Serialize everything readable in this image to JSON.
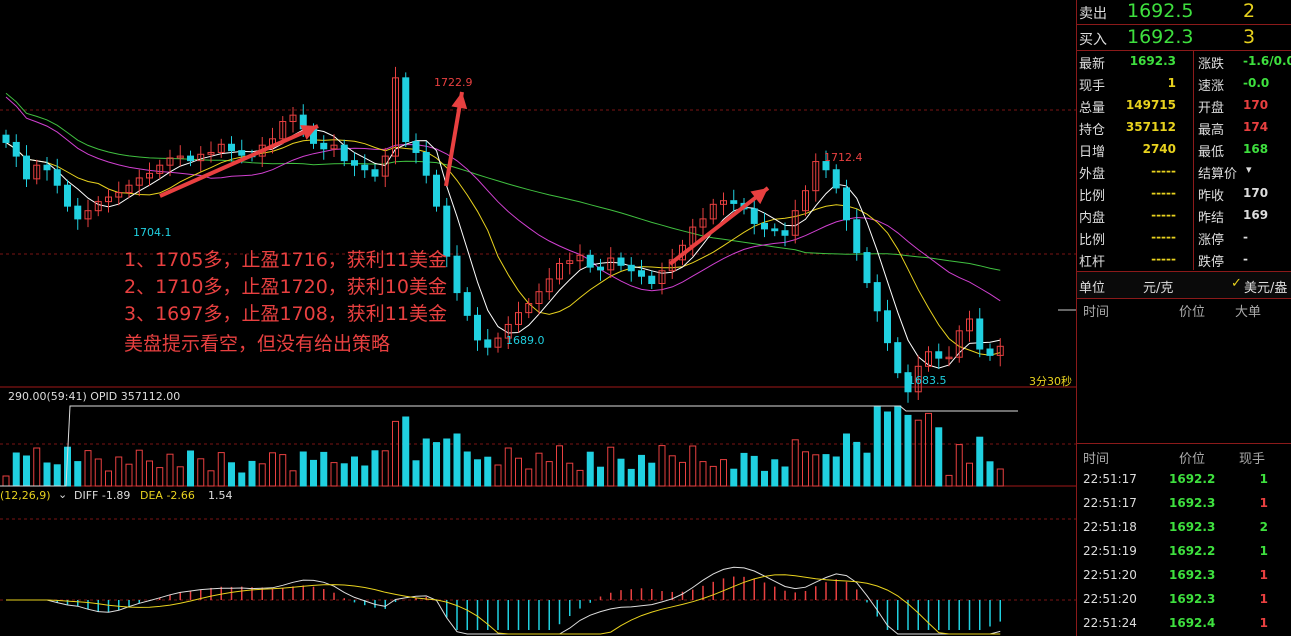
{
  "quote_panel": {
    "ask": {
      "label": "卖出",
      "price": "1692.5",
      "qty": "2"
    },
    "bid": {
      "label": "买入",
      "price": "1692.3",
      "qty": "3"
    },
    "rows": [
      {
        "k1": "最新",
        "v1": "1692.3",
        "c1": "#3ee03e",
        "k2": "涨跌",
        "v2": "-1.6/0.0",
        "c2": "#3ee03e"
      },
      {
        "k1": "现手",
        "v1": "1",
        "c1": "#e8d21e",
        "k2": "速涨",
        "v2": "-0.0",
        "c2": "#3ee03e"
      },
      {
        "k1": "总量",
        "v1": "149715",
        "c1": "#e8d21e",
        "k2": "开盘",
        "v2": "170",
        "c2": "#e84040"
      },
      {
        "k1": "持仓",
        "v1": "357112",
        "c1": "#e8d21e",
        "k2": "最高",
        "v2": "174",
        "c2": "#e84040"
      },
      {
        "k1": "日增",
        "v1": "2740",
        "c1": "#e8d21e",
        "k2": "最低",
        "v2": "168",
        "c2": "#3ee03e"
      },
      {
        "k1": "外盘",
        "v1": "-----",
        "c1": "#e8d21e",
        "k2": "结算价",
        "v2": "",
        "c2": "#ddd"
      },
      {
        "k1": "比例",
        "v1": "-----",
        "c1": "#e8d21e",
        "k2": "昨收",
        "v2": "170",
        "c2": "#ddd"
      },
      {
        "k1": "内盘",
        "v1": "-----",
        "c1": "#e8d21e",
        "k2": "昨结",
        "v2": "169",
        "c2": "#ddd"
      },
      {
        "k1": "比例",
        "v1": "-----",
        "c1": "#e8d21e",
        "k2": "涨停",
        "v2": "-",
        "c2": "#ddd"
      },
      {
        "k1": "杠杆",
        "v1": "-----",
        "c1": "#e8d21e",
        "k2": "跌停",
        "v2": "-",
        "c2": "#ddd"
      }
    ],
    "unit": {
      "label": "单位",
      "value": "元/克",
      "toggle_label": "美元/盎"
    },
    "bigorder_header": {
      "time": "时间",
      "price": "价位",
      "size": "大单"
    },
    "ticks_header": {
      "time": "时间",
      "price": "价位",
      "vol": "现手"
    },
    "ticks": [
      {
        "time": "22:51:17",
        "price": "1692.2",
        "vol": "1",
        "vc": "#3ee03e"
      },
      {
        "time": "22:51:17",
        "price": "1692.3",
        "vol": "1",
        "vc": "#e84040"
      },
      {
        "time": "22:51:18",
        "price": "1692.3",
        "vol": "2",
        "vc": "#3ee03e"
      },
      {
        "time": "22:51:19",
        "price": "1692.2",
        "vol": "1",
        "vc": "#3ee03e"
      },
      {
        "time": "22:51:20",
        "price": "1692.3",
        "vol": "1",
        "vc": "#e84040"
      },
      {
        "time": "22:51:20",
        "price": "1692.3",
        "vol": "1",
        "vc": "#e84040"
      },
      {
        "time": "22:51:24",
        "price": "1692.4",
        "vol": "1",
        "vc": "#e84040"
      }
    ]
  },
  "chart": {
    "price_labels": {
      "low1": "1704.1",
      "high1": "1722.9",
      "low2": "1689.0",
      "high2": "1712.4",
      "low3": "1683.5"
    },
    "countdown": "3分30秒",
    "volume_header": "290.00(59:41)  OPID 357112.00",
    "macd_header": {
      "prefix": "(12,26,9)",
      "diff": "DIFF -1.89",
      "dea": "DEA -2.66",
      "macd": "1.54"
    }
  },
  "annotations": [
    "1、1705多，止盈1716，获利11美金",
    "2、1710多，止盈1720，获利10美金",
    "3、1697多，止盈1708，获利11美金",
    "美盘提示看空，但没有给出策略"
  ],
  "chart_data": {
    "type": "candlestick",
    "colors": {
      "up": "#e84040",
      "down": "#20d0e0",
      "ma_fast": "#ffffff",
      "ma_mid": "#e8d21e",
      "ma_slow": "#d040d0",
      "ma_long": "#40c040"
    },
    "price_range_visible": [
      1681,
      1726
    ],
    "close": [
      1712.5,
      1711,
      1708.5,
      1710,
      1709.5,
      1707.8,
      1705.5,
      1704.1,
      1705,
      1706,
      1706.5,
      1707,
      1707.8,
      1708.6,
      1709.1,
      1710,
      1710.8,
      1711,
      1710.5,
      1711.2,
      1711.4,
      1712.3,
      1711.6,
      1711.1,
      1711,
      1712.2,
      1712.9,
      1714.8,
      1715.5,
      1714,
      1712.4,
      1711.8,
      1712.2,
      1710.5,
      1710,
      1709.5,
      1708.8,
      1711,
      1719.6,
      1712.6,
      1711.4,
      1708.9,
      1705.5,
      1700,
      1696,
      1693.5,
      1690.8,
      1690,
      1691,
      1692.5,
      1693.8,
      1694.8,
      1696.1,
      1697.5,
      1699.2,
      1699.5,
      1700.1,
      1698.8,
      1698.5,
      1699.8,
      1699,
      1698.4,
      1697.8,
      1697,
      1698.4,
      1699.6,
      1701.2,
      1703.2,
      1704.1,
      1705.7,
      1706.1,
      1705.8,
      1705.2,
      1703.6,
      1703,
      1702.8,
      1702.3,
      1705,
      1707.2,
      1710.4,
      1709.5,
      1707.5,
      1704,
      1700.4,
      1697.1,
      1694,
      1690.5,
      1687.2,
      1685.1,
      1687.9,
      1689.5,
      1688.8,
      1688.9,
      1691.8,
      1693.1,
      1689.8,
      1689.1,
      1690.1
    ]
  }
}
